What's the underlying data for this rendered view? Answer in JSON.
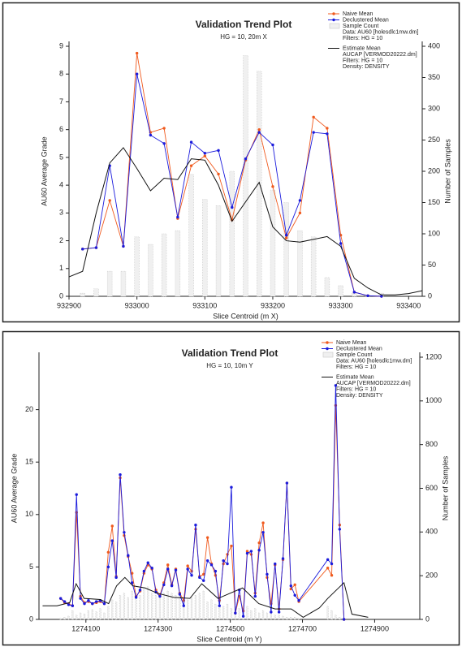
{
  "chart_data": [
    {
      "type": "line",
      "title": "Validation Trend Plot",
      "subtitle": "HG = 10, 20m X",
      "xlabel": "Slice Centroid (m X)",
      "ylabel": "AU60 Average Grade",
      "y2label": "Number of Samples",
      "xlim": [
        932900,
        933420
      ],
      "ylim": [
        0,
        9
      ],
      "y2lim": [
        0,
        400
      ],
      "xticks": [
        932900,
        933000,
        933100,
        933200,
        933300,
        933400
      ],
      "yticks": [
        0,
        1,
        2,
        3,
        4,
        5,
        6,
        7,
        8,
        9
      ],
      "y2ticks": [
        0,
        50,
        100,
        150,
        200,
        250,
        300,
        350,
        400
      ],
      "x": [
        932920,
        932940,
        932960,
        932980,
        933000,
        933020,
        933040,
        933060,
        933080,
        933100,
        933120,
        933140,
        933160,
        933180,
        933200,
        933220,
        933240,
        933260,
        933280,
        933300,
        933320,
        933340,
        933360
      ],
      "series": [
        {
          "name": "Naive Mean",
          "type": "line",
          "color": "#f05a1e",
          "values": [
            1.7,
            1.75,
            3.45,
            1.8,
            8.75,
            5.9,
            6.05,
            2.8,
            4.7,
            5.05,
            4.4,
            2.75,
            4.9,
            6.0,
            3.95,
            2.1,
            3.0,
            6.45,
            6.05,
            2.2,
            0.15,
            0.02,
            0.0
          ]
        },
        {
          "name": "Declustered Mean",
          "type": "line",
          "color": "#1a1adc",
          "values": [
            1.7,
            1.75,
            4.7,
            1.8,
            8.0,
            5.8,
            5.5,
            2.85,
            5.55,
            5.15,
            5.25,
            3.2,
            4.95,
            5.9,
            5.45,
            2.2,
            3.45,
            5.9,
            5.85,
            1.9,
            0.15,
            0.02,
            0.0
          ]
        },
        {
          "name": "Sample Count",
          "type": "bar",
          "axis": "y2",
          "color": "#c8c8c8",
          "notes": [
            "Data: AU60 [holesdlc1mw.dm]",
            "Filters: HG = 10"
          ],
          "values": [
            5,
            12,
            40,
            40,
            95,
            83,
            100,
            105,
            195,
            155,
            145,
            200,
            385,
            360,
            170,
            150,
            105,
            95,
            30,
            17,
            5,
            2,
            5
          ]
        },
        {
          "name": "Estimate Mean",
          "type": "line",
          "color": "#111111",
          "notes": [
            "AUCAP [VERMOD20222.dm]",
            "Filters: HG = 10",
            "Density: DENSITY"
          ],
          "x": [
            932900,
            932920,
            932940,
            932960,
            932980,
            933000,
            933020,
            933040,
            933060,
            933080,
            933100,
            933120,
            933140,
            933160,
            933180,
            933200,
            933220,
            933240,
            933260,
            933280,
            933300,
            933320,
            933340,
            933360,
            933380,
            933400,
            933420
          ],
          "values": [
            0.7,
            0.9,
            3.0,
            4.8,
            5.35,
            4.6,
            3.8,
            4.25,
            4.2,
            4.95,
            4.9,
            4.0,
            2.7,
            3.4,
            4.1,
            2.5,
            2.0,
            1.95,
            2.05,
            2.15,
            1.8,
            0.65,
            0.3,
            0.05,
            0.05,
            0.1,
            0.2
          ]
        }
      ]
    },
    {
      "type": "line",
      "title": "Validation Trend Plot",
      "subtitle": "HG = 10, 10m Y",
      "xlabel": "Slice Centroid (m Y)",
      "ylabel": "AU60 Average Grade",
      "y2label": "Number of Samples",
      "xlim": [
        1273970,
        1275025
      ],
      "ylim": [
        0,
        25
      ],
      "y2lim": [
        0,
        1200
      ],
      "xticks": [
        1274100,
        1274300,
        1274500,
        1274700,
        1274900
      ],
      "yticks": [
        0,
        5,
        10,
        15,
        20
      ],
      "y2ticks": [
        0,
        200,
        400,
        600,
        800,
        1000,
        1200
      ],
      "x": [
        1274030,
        1274041,
        1274052,
        1274063,
        1274074,
        1274085,
        1274096,
        1274107,
        1274118,
        1274129,
        1274140,
        1274151,
        1274162,
        1274173,
        1274184,
        1274195,
        1274206,
        1274217,
        1274228,
        1274239,
        1274250,
        1274261,
        1274272,
        1274283,
        1274294,
        1274305,
        1274316,
        1274327,
        1274338,
        1274349,
        1274360,
        1274371,
        1274382,
        1274393,
        1274404,
        1274415,
        1274426,
        1274437,
        1274448,
        1274459,
        1274470,
        1274481,
        1274492,
        1274503,
        1274514,
        1274525,
        1274536,
        1274547,
        1274558,
        1274569,
        1274580,
        1274591,
        1274602,
        1274613,
        1274624,
        1274635,
        1274646,
        1274657,
        1274668,
        1274679,
        1274690,
        1274770,
        1274781,
        1274792,
        1274803,
        1274815
      ],
      "series": [
        {
          "name": "Naive Mean",
          "type": "line",
          "color": "#f05a1e",
          "values": [
            2.0,
            1.6,
            1.5,
            1.3,
            10.2,
            2.2,
            1.6,
            1.7,
            1.5,
            1.6,
            1.7,
            1.5,
            6.4,
            8.9,
            4.1,
            13.5,
            8.0,
            6.0,
            4.4,
            2.2,
            2.7,
            4.4,
            5.2,
            4.8,
            2.8,
            2.3,
            3.5,
            5.2,
            3.3,
            4.8,
            2.5,
            1.8,
            5.1,
            4.6,
            8.6,
            4.1,
            4.3,
            7.8,
            5.3,
            4.2,
            1.8,
            5.3,
            6.2,
            7.0,
            0.6,
            2.2,
            0.8,
            6.5,
            6.2,
            2.5,
            7.3,
            9.2,
            4.0,
            1.5,
            5.2,
            1.0,
            5.7,
            13.0,
            2.9,
            3.3,
            1.7,
            4.9,
            4.2,
            20.4,
            9.0,
            0.0
          ]
        },
        {
          "name": "Declustered Mean",
          "type": "line",
          "color": "#1a1adc",
          "values": [
            2.0,
            1.7,
            1.4,
            1.3,
            11.9,
            2.0,
            1.5,
            1.8,
            1.5,
            1.7,
            1.8,
            1.5,
            5.0,
            7.5,
            4.0,
            13.8,
            8.3,
            6.1,
            3.5,
            2.1,
            2.8,
            4.6,
            5.4,
            4.9,
            2.6,
            2.2,
            3.3,
            4.8,
            3.2,
            4.7,
            2.4,
            1.3,
            4.8,
            4.2,
            9.0,
            4.0,
            3.7,
            5.6,
            5.2,
            4.6,
            1.3,
            5.6,
            5.3,
            12.6,
            0.6,
            2.8,
            0.3,
            6.3,
            6.5,
            2.2,
            6.6,
            8.3,
            4.3,
            0.7,
            5.3,
            0.7,
            5.8,
            13.0,
            3.2,
            2.3,
            1.8,
            5.7,
            5.3,
            22.3,
            8.6,
            0.0
          ]
        },
        {
          "name": "Sample Count",
          "type": "bar",
          "axis": "y2",
          "color": "#c8c8c8",
          "notes": [
            "Data: AU60 [holesdlc1mw.dm]",
            "Filters: HG = 10"
          ],
          "values": [
            5,
            10,
            15,
            40,
            20,
            30,
            25,
            40,
            45,
            35,
            50,
            30,
            60,
            90,
            80,
            110,
            120,
            100,
            130,
            120,
            110,
            140,
            150,
            120,
            110,
            100,
            120,
            130,
            120,
            110,
            120,
            100,
            90,
            100,
            110,
            120,
            130,
            80,
            90,
            70,
            80,
            60,
            70,
            50,
            60,
            50,
            40,
            60,
            40,
            50,
            30,
            40,
            30,
            30,
            20,
            20,
            15,
            10,
            10,
            10,
            5,
            60,
            40,
            20,
            10,
            5
          ]
        },
        {
          "name": "Estimate Mean",
          "type": "line",
          "color": "#111111",
          "notes": [
            "AUCAP [VERMOD20222.dm]",
            "Filters: HG = 10",
            "Density: DENSITY"
          ],
          "x": [
            1273980,
            1274020,
            1274055,
            1274073,
            1274095,
            1274140,
            1274163,
            1274185,
            1274208,
            1274230,
            1274264,
            1274298,
            1274343,
            1274388,
            1274421,
            1274466,
            1274500,
            1274534,
            1274579,
            1274624,
            1274669,
            1274702,
            1274747,
            1274770,
            1274815,
            1274837,
            1274882
          ],
          "values": [
            1.3,
            1.3,
            1.6,
            3.4,
            2.0,
            1.9,
            1.5,
            3.2,
            4.0,
            3.2,
            3.0,
            2.5,
            2.1,
            2.0,
            3.4,
            2.0,
            2.5,
            3.0,
            1.5,
            1.0,
            1.0,
            0.2,
            1.1,
            2.0,
            3.5,
            0.5,
            0.2
          ]
        }
      ]
    }
  ]
}
